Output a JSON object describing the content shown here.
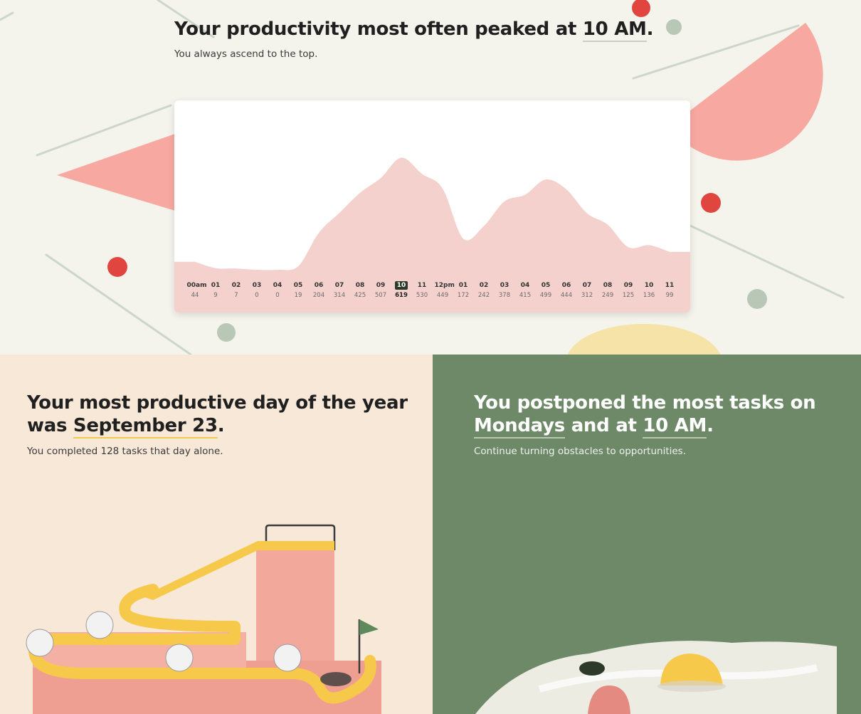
{
  "hero": {
    "title_prefix": "Your productivity most often peaked at ",
    "title_highlight": "10 AM",
    "title_suffix": ".",
    "subtitle": "You always ascend to the top."
  },
  "chart_data": {
    "type": "area",
    "x": [
      "00am",
      "01",
      "02",
      "03",
      "04",
      "05",
      "06",
      "07",
      "08",
      "09",
      "10",
      "11",
      "12pm",
      "01",
      "02",
      "03",
      "04",
      "05",
      "06",
      "07",
      "08",
      "09",
      "10",
      "11"
    ],
    "values": [
      44,
      9,
      7,
      0,
      0,
      19,
      204,
      314,
      425,
      507,
      619,
      530,
      449,
      172,
      242,
      378,
      415,
      499,
      444,
      312,
      249,
      125,
      136,
      99
    ],
    "highlighted_x": "10",
    "ylim": [
      0,
      700
    ],
    "fill_color": "#f4d1cc"
  },
  "left_panel": {
    "title_line1": "Your most productive day of the year",
    "title_line2_prefix": "was ",
    "title_highlight": "September 23",
    "title_suffix": ".",
    "subtitle": "You completed 128 tasks that day alone."
  },
  "right_panel": {
    "title_line1": "You postponed the most tasks on",
    "title_highlight_day": "Mondays",
    "title_middle": " and at ",
    "title_highlight_time": "10 AM",
    "title_suffix": ".",
    "subtitle": "Continue turning obstacles to opportunities."
  },
  "colors": {
    "hero_bg": "#f4f3ec",
    "chart_fill": "#f4d1cc",
    "left_bg": "#f8e8d8",
    "right_bg": "#6d8968",
    "accent_red": "#e0453f",
    "accent_pink": "#f6a39a",
    "accent_yellow": "#f6c94a"
  }
}
